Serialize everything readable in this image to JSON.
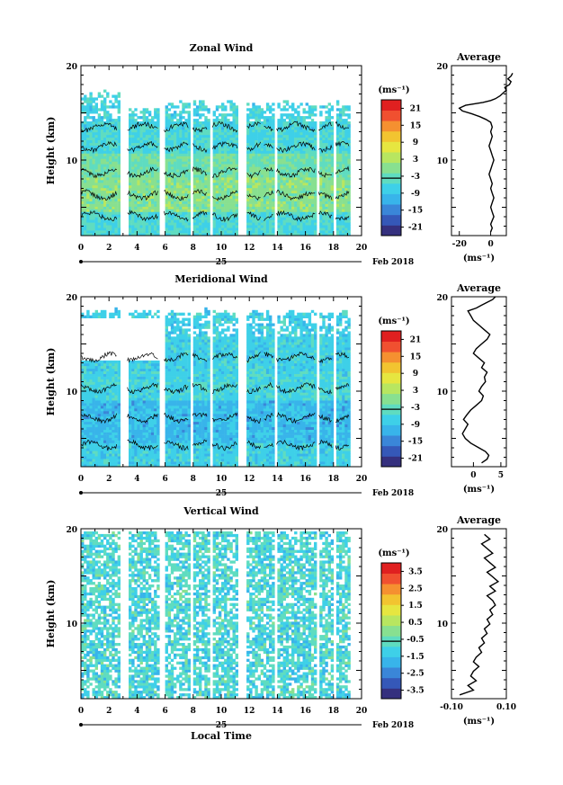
{
  "x_label": "Local Time",
  "date_label": "Feb 2018",
  "day_label": "25",
  "height_label": "Height (km)",
  "average_title": "Average",
  "unit_label": "(ms⁻¹)",
  "x_ticks": [
    "0",
    "2",
    "4",
    "6",
    "8",
    "10",
    "12",
    "14",
    "16",
    "18",
    "20"
  ],
  "height_ticks": [
    "20",
    "10"
  ],
  "colorscale": [
    "#35307e",
    "#3558b8",
    "#3a86d8",
    "#38b4ea",
    "#3ed0e8",
    "#5fdcc0",
    "#88e090",
    "#b8e660",
    "#e6e640",
    "#f2c430",
    "#f59030",
    "#f05030",
    "#e02020"
  ],
  "chart_data": [
    {
      "type": "heatmap",
      "title": "Zonal Wind",
      "ylabel": "Height (km)",
      "xlim": [
        0,
        20
      ],
      "ylim": [
        2,
        20
      ],
      "colorbar_ticks": [
        "21",
        "15",
        "9",
        "3",
        "-3",
        "-9",
        "-15",
        "-21"
      ],
      "clim": [
        -24,
        24
      ],
      "field": "zonal",
      "profile": {
        "title": "Average",
        "xlim": [
          -25,
          10
        ],
        "xticks": [
          "-20",
          "0"
        ],
        "ylim": [
          2,
          20
        ],
        "x": [
          0,
          1,
          0,
          1,
          2,
          1,
          0,
          1,
          2,
          1,
          0,
          1,
          0,
          -1,
          0,
          1,
          2,
          1,
          0,
          -1,
          0,
          1,
          0,
          1,
          0,
          -3,
          -7,
          -12,
          -18,
          -20,
          -16,
          -5,
          0,
          3,
          6,
          8,
          10,
          9,
          12,
          13,
          11,
          13,
          14
        ],
        "y": [
          2.4,
          2.8,
          3.2,
          3.6,
          4.0,
          4.5,
          5.0,
          5.5,
          6.0,
          6.5,
          7.0,
          7.5,
          8.0,
          8.5,
          9.0,
          9.5,
          10.0,
          10.5,
          11.0,
          11.5,
          12.0,
          12.5,
          13.0,
          13.5,
          14.0,
          14.3,
          14.6,
          14.9,
          15.2,
          15.5,
          15.8,
          16.1,
          16.3,
          16.5,
          16.8,
          17.1,
          17.4,
          17.7,
          18.0,
          18.3,
          18.6,
          18.9,
          19.2
        ]
      }
    },
    {
      "type": "heatmap",
      "title": "Meridional Wind",
      "ylabel": "Height (km)",
      "xlim": [
        0,
        20
      ],
      "ylim": [
        2,
        20
      ],
      "colorbar_ticks": [
        "21",
        "15",
        "9",
        "3",
        "-3",
        "-9",
        "-15",
        "-21"
      ],
      "clim": [
        -24,
        24
      ],
      "field": "meridional",
      "profile": {
        "title": "Average",
        "xlim": [
          -4,
          6
        ],
        "xticks": [
          "0",
          "5"
        ],
        "ylim": [
          2,
          20
        ],
        "x": [
          1.5,
          2.5,
          2.8,
          2.2,
          1.0,
          -0.5,
          -1.5,
          -2.0,
          -1.5,
          -1.0,
          -1.8,
          -1.2,
          -0.5,
          0.5,
          1.5,
          1.8,
          1.0,
          1.5,
          2.2,
          2.0,
          2.5,
          1.5,
          2.0,
          1.0,
          0.0,
          0.5,
          1.5,
          2.5,
          3.0,
          2.0,
          1.0,
          0.0,
          -0.5,
          -1.0,
          0.5,
          1.5,
          2.5,
          3.5,
          4.0
        ],
        "y": [
          2.4,
          2.8,
          3.2,
          3.6,
          4.0,
          4.5,
          5.0,
          5.5,
          6.0,
          6.5,
          7.0,
          7.5,
          8.0,
          8.5,
          9.0,
          9.5,
          10.0,
          10.5,
          11.0,
          11.5,
          12.0,
          12.5,
          13.0,
          13.5,
          14.0,
          14.5,
          15.0,
          15.5,
          16.0,
          16.5,
          17.0,
          17.5,
          18.0,
          18.5,
          18.8,
          19.1,
          19.4,
          19.7,
          20.0
        ]
      }
    },
    {
      "type": "heatmap",
      "title": "Vertical Wind",
      "ylabel": "Height (km)",
      "xlim": [
        0,
        20
      ],
      "ylim": [
        2,
        20
      ],
      "colorbar_ticks": [
        "3.5",
        "2.5",
        "1.5",
        "0.5",
        "-0.5",
        "-1.5",
        "-2.5",
        "-3.5"
      ],
      "clim": [
        -4,
        4
      ],
      "field": "vertical",
      "profile": {
        "title": "Average",
        "xlim": [
          -0.1,
          0.1
        ],
        "xticks": [
          "-0.10",
          "0.10"
        ],
        "ylim": [
          2,
          20
        ],
        "x": [
          -0.07,
          -0.02,
          -0.04,
          -0.01,
          -0.03,
          -0.02,
          0.0,
          -0.02,
          -0.01,
          0.01,
          0.0,
          0.02,
          0.01,
          0.03,
          0.02,
          0.04,
          0.03,
          0.05,
          0.04,
          0.06,
          0.05,
          0.03,
          0.06,
          0.04,
          0.07,
          0.05,
          0.03,
          0.06,
          0.04,
          0.02,
          0.05,
          0.03,
          0.01,
          0.04,
          0.02
        ],
        "y": [
          2.4,
          2.9,
          3.4,
          3.9,
          4.4,
          4.9,
          5.4,
          5.9,
          6.4,
          6.9,
          7.4,
          7.9,
          8.4,
          8.9,
          9.4,
          9.9,
          10.4,
          10.9,
          11.4,
          11.9,
          12.4,
          12.9,
          13.4,
          13.9,
          14.4,
          14.9,
          15.4,
          15.9,
          16.4,
          16.9,
          17.4,
          17.9,
          18.4,
          18.9,
          19.4
        ]
      }
    }
  ]
}
